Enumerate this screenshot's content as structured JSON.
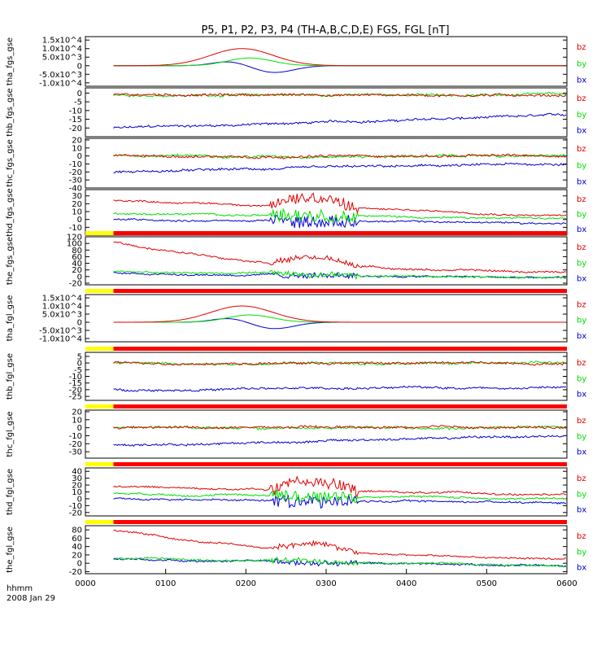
{
  "chart_data": {
    "type": "line",
    "title": "P5, P1, P2, P3, P4 (TH-A,B,C,D,E) FGS, FGL [nT]",
    "x_ticks": [
      "0000",
      "0100",
      "0200",
      "0300",
      "0400",
      "0500",
      "0600"
    ],
    "x_range": [
      0,
      6
    ],
    "x_unit_label": "hhmm",
    "date_label": "2008 Jan 29",
    "series_names": [
      "bz",
      "by",
      "bx"
    ],
    "colors": {
      "bz": "#e00000",
      "by": "#00e000",
      "bx": "#0000d0",
      "bar_yellow": "#ffff00",
      "bar_red": "#ff0000"
    },
    "panels": [
      {
        "ylabel": "tha_fgs_gse",
        "kind": "peak",
        "ylim": [
          -12000,
          17000
        ],
        "ticks": [
          "1.5x10^4",
          "1.0x10^4",
          "5.0x10^3",
          "0",
          "-5.0x10^3",
          "-1.0x10^4"
        ],
        "tickvals": [
          15000,
          10000,
          5000,
          0,
          -5000,
          -10000
        ],
        "peak": {
          "bz": 10000,
          "by": 4500,
          "bx_pos": 2500,
          "bx_neg": -4000
        },
        "bar": false
      },
      {
        "ylabel": "thb_fgs_gse",
        "kind": "quiet",
        "ylim": [
          -25,
          3
        ],
        "ticks": [
          "0",
          "-5",
          "-10",
          "-15",
          "-20"
        ],
        "tickvals": [
          0,
          -5,
          -10,
          -15,
          -20
        ],
        "levels": {
          "bz": -1,
          "by": -1,
          "bx": -20
        },
        "bx_end": -13,
        "bar": false
      },
      {
        "ylabel": "thc_fgs_gse",
        "kind": "quiet",
        "ylim": [
          -40,
          22
        ],
        "ticks": [
          "20",
          "10",
          "0",
          "-10",
          "-20",
          "-30",
          "-40"
        ],
        "tickvals": [
          20,
          10,
          0,
          -10,
          -20,
          -30,
          -40
        ],
        "levels": {
          "bz": 0,
          "by": 0,
          "bx": -20
        },
        "bx_end": -10,
        "bar": false
      },
      {
        "ylabel": "thd_fgs_gse",
        "kind": "burst",
        "ylim": [
          -20,
          38
        ],
        "ticks": [
          "30",
          "20",
          "10",
          "0",
          "-10"
        ],
        "tickvals": [
          30,
          20,
          10,
          0,
          -10
        ],
        "start": {
          "bz": 25,
          "by": 8,
          "bx": 0
        },
        "end": {
          "bz": 5,
          "by": 0,
          "bx": -5
        },
        "bar": false
      },
      {
        "ylabel": "the_fgs_gse",
        "kind": "decay",
        "ylim": [
          -25,
          120
        ],
        "ticks": [
          "120",
          "100",
          "80",
          "60",
          "40",
          "20",
          "0",
          "-20"
        ],
        "tickvals": [
          120,
          100,
          80,
          60,
          40,
          20,
          0,
          -20
        ],
        "start": {
          "bz": 105,
          "by": 15,
          "bx": 10
        },
        "end": {
          "bz": 5,
          "by": -5,
          "bx": -5
        },
        "bar": true
      },
      {
        "ylabel": "tha_fgl_gse",
        "kind": "peak",
        "ylim": [
          -12000,
          17000
        ],
        "ticks": [
          "1.5x10^4",
          "1.0x10^4",
          "5.0x10^3",
          "0",
          "-5.0x10^3",
          "-1.0x10^4"
        ],
        "tickvals": [
          15000,
          10000,
          5000,
          0,
          -5000,
          -10000
        ],
        "peak": {
          "bz": 10000,
          "by": 4500,
          "bx_pos": 2500,
          "bx_neg": -4000
        },
        "bar": true
      },
      {
        "ylabel": "thb_fgl_gse",
        "kind": "quiet",
        "ylim": [
          -28,
          8
        ],
        "ticks": [
          "5",
          "0",
          "-5",
          "-10",
          "-15",
          "-20",
          "-25"
        ],
        "tickvals": [
          5,
          0,
          -5,
          -10,
          -15,
          -20,
          -25
        ],
        "levels": {
          "bz": 0,
          "by": 0,
          "bx": -20
        },
        "bx_end": -18,
        "bar": true
      },
      {
        "ylabel": "thc_fgl_gse",
        "kind": "quiet",
        "ylim": [
          -38,
          22
        ],
        "ticks": [
          "20",
          "10",
          "0",
          "-10",
          "-20",
          "-30"
        ],
        "tickvals": [
          20,
          10,
          0,
          -10,
          -20,
          -30
        ],
        "levels": {
          "bz": 0,
          "by": 0,
          "bx": -22
        },
        "bx_end": -10,
        "bar": true
      },
      {
        "ylabel": "thd_fgl_gse",
        "kind": "burst",
        "ylim": [
          -25,
          45
        ],
        "ticks": [
          "40",
          "30",
          "20",
          "10",
          "0",
          "-10",
          "-20"
        ],
        "tickvals": [
          40,
          30,
          20,
          10,
          0,
          -10,
          -20
        ],
        "start": {
          "bz": 18,
          "by": 8,
          "bx": 0
        },
        "end": {
          "bz": 5,
          "by": 0,
          "bx": -5
        },
        "bar": true
      },
      {
        "ylabel": "the_fgl_gse",
        "kind": "decay",
        "ylim": [
          -25,
          90
        ],
        "ticks": [
          "80",
          "60",
          "40",
          "20",
          "0",
          "-20"
        ],
        "tickvals": [
          80,
          60,
          40,
          20,
          0,
          -20
        ],
        "start": {
          "bz": 80,
          "by": 12,
          "bx": 10
        },
        "end": {
          "bz": 5,
          "by": -5,
          "bx": -5
        },
        "bar": true
      }
    ]
  }
}
